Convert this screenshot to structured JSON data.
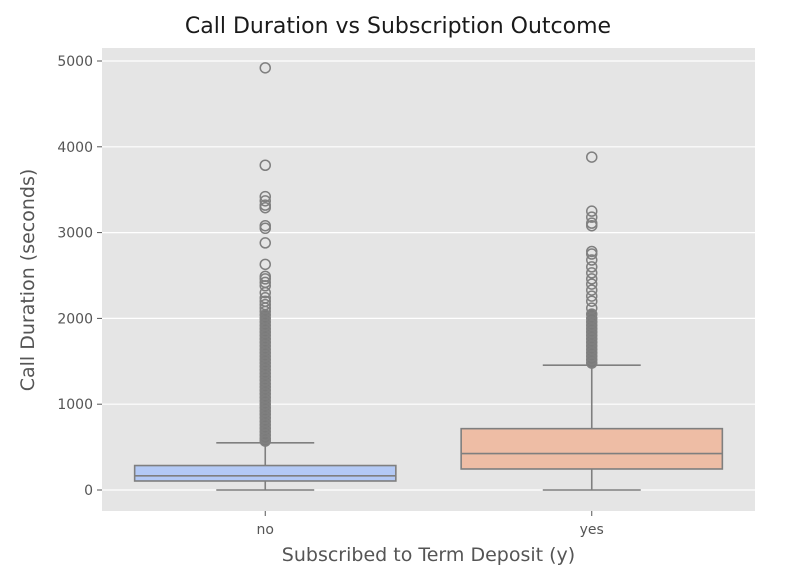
{
  "chart_data": {
    "type": "box",
    "title": "Call Duration vs Subscription Outcome",
    "xlabel": "Subscribed to Term Deposit (y)",
    "ylabel": "Call Duration (seconds)",
    "categories": [
      "no",
      "yes"
    ],
    "ylim": [
      -240,
      5150
    ],
    "yticks": [
      0,
      1000,
      2000,
      3000,
      4000,
      5000
    ],
    "grid": true,
    "background": "#e5e5e5",
    "series": [
      {
        "name": "no",
        "color": "#b3c9f5",
        "whisker_low": 0,
        "q1": 105,
        "median": 165,
        "q3": 285,
        "whisker_high": 550,
        "outliers": [
          4920,
          3785,
          3420,
          3370,
          3320,
          3290,
          3080,
          3050,
          2880,
          2630,
          2490,
          2460,
          2420,
          2380,
          2300,
          2240,
          2200,
          2160,
          2120,
          2080,
          2040,
          2000,
          1960,
          1920,
          1880,
          1840,
          1800,
          1760,
          1720,
          1680,
          1640,
          1600,
          1560,
          1520,
          1480,
          1440,
          1400,
          1360,
          1320,
          1280,
          1240,
          1200,
          1160,
          1120,
          1080,
          1040,
          1000,
          960,
          920,
          880,
          840,
          800,
          760,
          720,
          680,
          640,
          600,
          570
        ]
      },
      {
        "name": "yes",
        "color": "#eebda5",
        "whisker_low": 0,
        "q1": 245,
        "median": 425,
        "q3": 715,
        "whisker_high": 1455,
        "outliers": [
          3880,
          3250,
          3180,
          3110,
          3080,
          2780,
          2750,
          2680,
          2600,
          2530,
          2460,
          2400,
          2330,
          2260,
          2200,
          2120,
          2050,
          2000,
          1960,
          1920,
          1880,
          1840,
          1800,
          1760,
          1720,
          1680,
          1640,
          1600,
          1560,
          1520,
          1480
        ]
      }
    ]
  }
}
